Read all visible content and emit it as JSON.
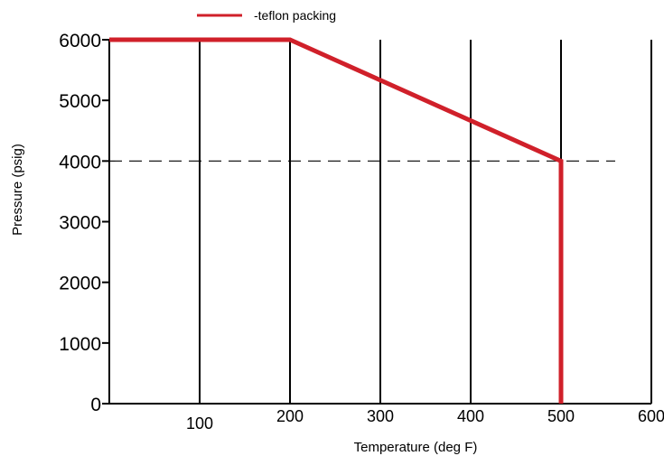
{
  "chart_data": {
    "type": "line",
    "title": "",
    "xlabel": "Temperature (deg F)",
    "ylabel": "Pressure (psig)",
    "xlim": [
      0,
      600
    ],
    "ylim": [
      0,
      6000
    ],
    "x_ticks": [
      100,
      200,
      300,
      400,
      500,
      600
    ],
    "x_tick_labels": [
      "100",
      "200",
      "300",
      "400",
      "500",
      "600"
    ],
    "y_ticks": [
      0,
      1000,
      2000,
      3000,
      4000,
      5000,
      6000
    ],
    "y_tick_labels": [
      "0",
      "1000",
      "2000",
      "3000",
      "4000",
      "5000",
      "6000"
    ],
    "grid": {
      "vertical": true,
      "horizontal": false
    },
    "legend_position": "top-left",
    "series": [
      {
        "name": "-teflon packing",
        "color": "#d0202a",
        "x": [
          0,
          200,
          500,
          500
        ],
        "y": [
          6000,
          6000,
          4000,
          0
        ]
      }
    ],
    "reference_lines": [
      {
        "orientation": "horizontal",
        "y": 4000,
        "x_range": [
          0,
          560
        ],
        "style": "dashed",
        "color": "#000000"
      }
    ]
  }
}
